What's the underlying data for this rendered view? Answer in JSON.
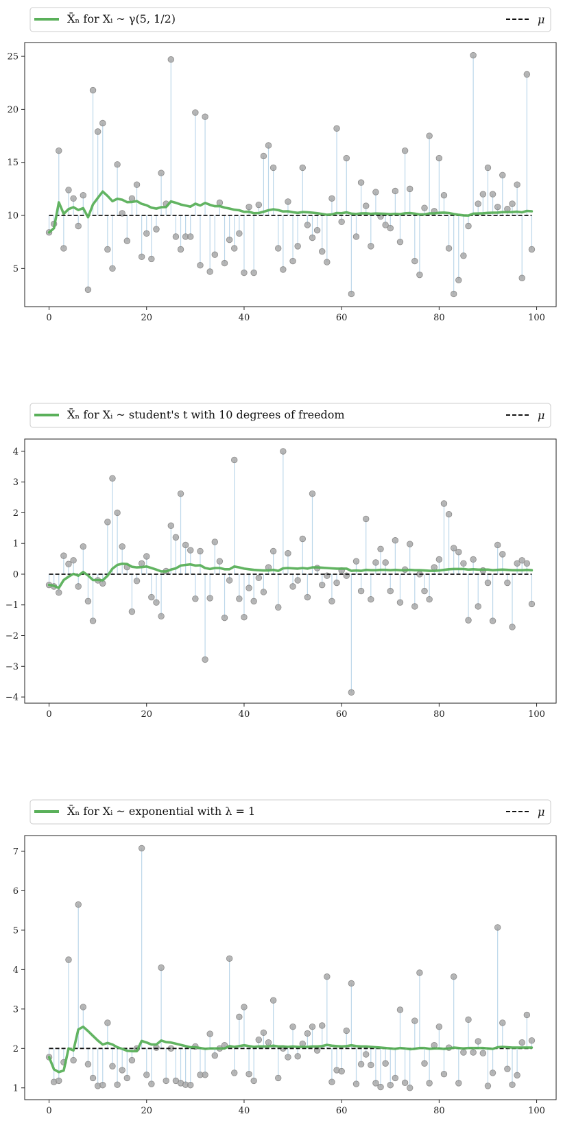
{
  "chart_data": [
    {
      "type": "scatter-stem-line",
      "legend": {
        "running_mean_label": "X̄ₙ for Xᵢ ~ γ(5, 1/2)",
        "mu_label": "μ"
      },
      "mu": 10,
      "xlim": [
        -5,
        104
      ],
      "ylim": [
        1.4,
        26.3
      ],
      "xticks": [
        0,
        20,
        40,
        60,
        80,
        100
      ],
      "yticks": [
        5,
        10,
        15,
        20,
        25
      ],
      "samples": [
        8.4,
        9.2,
        16.1,
        6.9,
        12.4,
        11.6,
        9.0,
        11.9,
        3.0,
        21.8,
        17.9,
        18.7,
        6.8,
        5.0,
        14.8,
        10.2,
        7.6,
        11.6,
        12.9,
        6.1,
        8.3,
        5.9,
        8.7,
        14.0,
        11.1,
        24.7,
        8.0,
        6.8,
        8.0,
        8.0,
        19.7,
        5.3,
        19.3,
        4.7,
        6.3,
        11.2,
        5.5,
        7.7,
        6.9,
        8.3,
        4.6,
        10.8,
        4.6,
        11.0,
        15.6,
        16.6,
        14.5,
        6.9,
        4.9,
        11.3,
        5.7,
        7.1,
        14.5,
        9.1,
        7.9,
        8.6,
        6.6,
        5.6,
        11.6,
        18.2,
        9.4,
        15.4,
        2.6,
        8.0,
        13.1,
        10.9,
        7.1,
        12.2,
        9.9,
        9.1,
        8.8,
        12.3,
        7.5,
        16.1,
        12.5,
        5.7,
        4.4,
        10.7,
        17.5,
        10.4,
        15.4,
        11.9,
        6.9,
        2.6,
        3.9,
        6.2,
        9.0,
        25.1,
        11.1,
        12.0,
        14.5,
        12.0,
        10.8,
        13.8,
        10.6,
        11.1,
        12.9,
        4.1,
        23.3,
        6.8
      ],
      "running_mean": [
        8.4,
        8.8,
        11.23,
        10.15,
        10.6,
        10.77,
        10.51,
        10.68,
        9.83,
        11.03,
        11.66,
        12.25,
        11.83,
        11.34,
        11.57,
        11.48,
        11.25,
        11.27,
        11.35,
        11.09,
        10.96,
        10.73,
        10.64,
        10.78,
        10.79,
        11.32,
        11.19,
        11.03,
        10.93,
        10.83,
        11.11,
        10.93,
        11.18,
        11.0,
        10.87,
        10.88,
        10.74,
        10.65,
        10.54,
        10.49,
        10.34,
        10.35,
        10.21,
        10.23,
        10.35,
        10.49,
        10.58,
        10.5,
        10.38,
        10.39,
        10.3,
        10.24,
        10.32,
        10.3,
        10.26,
        10.21,
        10.14,
        10.06,
        10.09,
        10.23,
        10.21,
        10.29,
        10.17,
        10.14,
        10.19,
        10.2,
        10.15,
        10.18,
        10.17,
        10.15,
        10.12,
        10.15,
        10.12,
        10.2,
        10.23,
        10.17,
        10.09,
        10.1,
        10.19,
        10.19,
        10.25,
        10.27,
        10.23,
        10.13,
        10.06,
        10.01,
        9.99,
        10.17,
        10.18,
        10.2,
        10.24,
        10.26,
        10.27,
        10.31,
        10.31,
        10.32,
        10.35,
        10.29,
        10.42,
        10.39
      ]
    },
    {
      "type": "scatter-stem-line",
      "legend": {
        "running_mean_label": "X̄ₙ for Xᵢ ~ student's t with 10 degrees of freedom",
        "mu_label": "μ"
      },
      "mu": 0,
      "xlim": [
        -5,
        104
      ],
      "ylim": [
        -4.2,
        4.4
      ],
      "xticks": [
        0,
        20,
        40,
        60,
        80,
        100
      ],
      "yticks": [
        -4,
        -3,
        -2,
        -1,
        0,
        1,
        2,
        3,
        4
      ],
      "samples": [
        -0.35,
        -0.4,
        -0.6,
        0.6,
        0.33,
        0.45,
        -0.4,
        0.9,
        -0.88,
        -1.52,
        -0.2,
        -0.3,
        1.7,
        3.12,
        2.0,
        0.9,
        0.23,
        -1.22,
        -0.22,
        0.35,
        0.58,
        -0.75,
        -0.92,
        -1.37,
        0.1,
        1.58,
        1.2,
        2.62,
        0.95,
        0.78,
        -0.8,
        0.75,
        -2.78,
        -0.78,
        1.05,
        0.42,
        -1.42,
        -0.2,
        3.72,
        -0.8,
        -1.4,
        -0.45,
        -0.88,
        -0.12,
        -0.58,
        0.22,
        0.75,
        -1.08,
        4.0,
        0.68,
        -0.4,
        -0.2,
        1.15,
        -0.75,
        2.62,
        0.2,
        -0.35,
        -0.05,
        -0.88,
        -0.28,
        0.12,
        -0.05,
        -3.85,
        0.42,
        -0.55,
        1.8,
        -0.82,
        0.38,
        0.82,
        0.38,
        -0.55,
        1.1,
        -0.92,
        0.15,
        0.98,
        -1.05,
        0.0,
        -0.55,
        -0.82,
        0.22,
        0.48,
        2.3,
        1.95,
        0.85,
        0.72,
        0.35,
        -1.5,
        0.48,
        -1.05,
        0.12,
        -0.28,
        -1.52,
        0.95,
        0.65,
        -0.28,
        -1.72,
        0.35,
        0.45,
        0.35,
        -0.97
      ],
      "running_mean": [
        -0.35,
        -0.38,
        -0.45,
        -0.19,
        -0.08,
        0.01,
        -0.05,
        0.07,
        -0.04,
        -0.19,
        -0.19,
        -0.2,
        -0.05,
        0.18,
        0.3,
        0.34,
        0.33,
        0.24,
        0.22,
        0.23,
        0.25,
        0.2,
        0.15,
        0.09,
        0.09,
        0.15,
        0.19,
        0.28,
        0.3,
        0.32,
        0.28,
        0.29,
        0.2,
        0.17,
        0.2,
        0.2,
        0.16,
        0.16,
        0.25,
        0.22,
        0.18,
        0.16,
        0.14,
        0.13,
        0.12,
        0.12,
        0.14,
        0.11,
        0.19,
        0.2,
        0.19,
        0.18,
        0.2,
        0.18,
        0.22,
        0.22,
        0.21,
        0.2,
        0.19,
        0.18,
        0.18,
        0.18,
        0.11,
        0.12,
        0.11,
        0.14,
        0.13,
        0.13,
        0.14,
        0.14,
        0.13,
        0.14,
        0.13,
        0.13,
        0.14,
        0.13,
        0.13,
        0.12,
        0.11,
        0.11,
        0.12,
        0.14,
        0.16,
        0.17,
        0.17,
        0.17,
        0.15,
        0.16,
        0.15,
        0.15,
        0.15,
        0.13,
        0.14,
        0.15,
        0.14,
        0.13,
        0.13,
        0.13,
        0.14,
        0.13
      ]
    },
    {
      "type": "scatter-stem-line",
      "legend": {
        "running_mean_label": "X̄ₙ for Xᵢ ~ exponential with λ = 1",
        "mu_label": "μ"
      },
      "mu": 2,
      "xlim": [
        -5,
        104
      ],
      "ylim": [
        0.7,
        7.4
      ],
      "xticks": [
        0,
        20,
        40,
        60,
        80,
        100
      ],
      "yticks": [
        1,
        2,
        3,
        4,
        5,
        6,
        7
      ],
      "samples": [
        1.78,
        1.15,
        1.18,
        1.65,
        4.25,
        1.7,
        5.65,
        3.05,
        1.6,
        1.25,
        1.05,
        1.07,
        2.65,
        1.55,
        1.08,
        1.45,
        1.25,
        1.7,
        2.0,
        7.08,
        1.33,
        1.1,
        2.02,
        4.05,
        1.18,
        2.0,
        1.18,
        1.12,
        1.08,
        1.07,
        2.05,
        1.33,
        1.33,
        2.37,
        1.82,
        2.0,
        2.08,
        4.28,
        1.38,
        2.8,
        3.05,
        1.35,
        1.18,
        2.22,
        2.4,
        2.15,
        3.22,
        1.25,
        2.0,
        1.78,
        2.55,
        1.8,
        2.12,
        2.38,
        2.55,
        1.95,
        2.58,
        3.82,
        1.15,
        1.45,
        1.42,
        2.45,
        3.65,
        1.1,
        1.6,
        1.85,
        1.58,
        1.12,
        1.02,
        1.62,
        1.07,
        1.25,
        2.98,
        1.13,
        1.0,
        2.7,
        3.92,
        1.62,
        1.12,
        2.08,
        2.55,
        1.35,
        2.02,
        3.82,
        1.12,
        1.9,
        2.73,
        1.9,
        2.18,
        1.88,
        1.05,
        1.38,
        5.07,
        2.65,
        1.48,
        1.08,
        1.32,
        2.15,
        2.85,
        2.2
      ],
      "running_mean": [
        1.78,
        1.47,
        1.4,
        1.44,
        2.0,
        1.95,
        2.48,
        2.55,
        2.44,
        2.32,
        2.2,
        2.1,
        2.14,
        2.1,
        2.03,
        1.99,
        1.94,
        1.93,
        1.93,
        2.19,
        2.15,
        2.1,
        2.1,
        2.2,
        2.16,
        2.15,
        2.12,
        2.09,
        2.06,
        2.03,
        2.03,
        2.01,
        1.99,
        2.0,
        2.0,
        2.0,
        2.0,
        2.06,
        2.04,
        2.06,
        2.08,
        2.06,
        2.04,
        2.05,
        2.05,
        2.05,
        2.07,
        2.05,
        2.05,
        2.04,
        2.05,
        2.04,
        2.04,
        2.04,
        2.05,
        2.05,
        2.06,
        2.09,
        2.07,
        2.06,
        2.05,
        2.06,
        2.08,
        2.06,
        2.05,
        2.05,
        2.04,
        2.03,
        2.02,
        2.01,
        2.0,
        1.99,
        2.01,
        2.0,
        1.98,
        1.99,
        2.01,
        2.01,
        1.99,
        2.0,
        2.0,
        1.99,
        2.0,
        2.02,
        2.01,
        2.0,
        2.01,
        2.01,
        2.01,
        2.01,
        2.0,
        1.99,
        2.03,
        2.04,
        2.03,
        2.02,
        2.02,
        2.02,
        2.02,
        2.02
      ]
    }
  ]
}
